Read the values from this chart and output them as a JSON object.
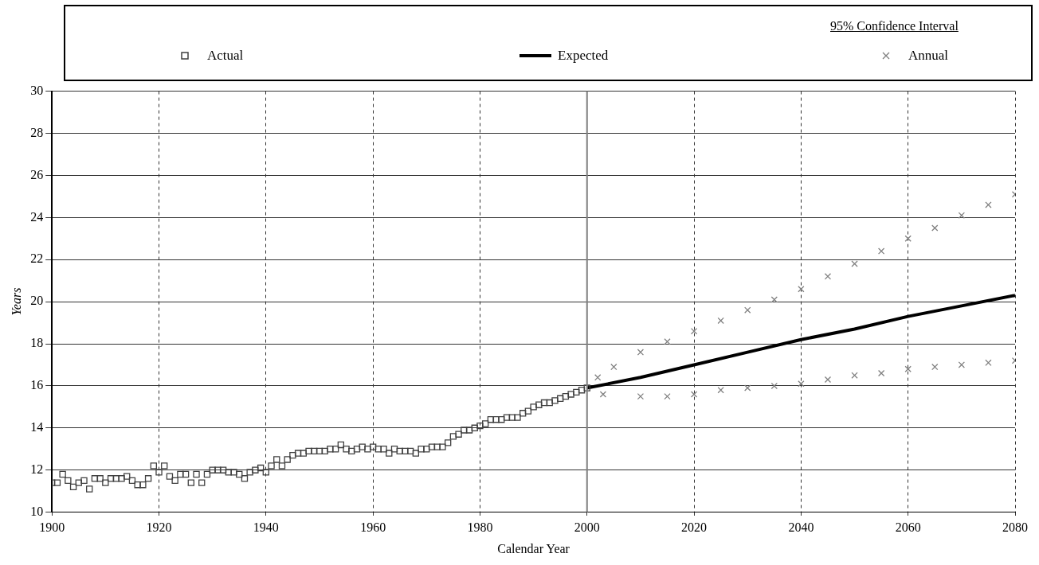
{
  "chart_data": {
    "type": "scatter",
    "xlabel": "Calendar Year",
    "ylabel": "Years",
    "legend_title": "95% Confidence Interval",
    "legend": "top",
    "grid": true,
    "xlim": [
      1900,
      2080
    ],
    "xticks": [
      1900,
      1920,
      1940,
      1960,
      1980,
      2000,
      2020,
      2040,
      2060,
      {
        "value": 2080,
        "label": "2080"
      }
    ],
    "ylim": [
      10,
      30
    ],
    "yticks": [
      10,
      12,
      14,
      16,
      18,
      20,
      22,
      24,
      26,
      28,
      30
    ],
    "ref_lines": [
      {
        "axis": "x",
        "value": 2000,
        "color": "#808080",
        "line_style": "solid"
      }
    ],
    "series": [
      {
        "name": "Actual",
        "type": "scatter",
        "marker": "square",
        "color": "#404040",
        "x": [
          1900,
          1901,
          1902,
          1903,
          1904,
          1905,
          1906,
          1907,
          1908,
          1909,
          1910,
          1911,
          1912,
          1913,
          1914,
          1915,
          1916,
          1917,
          1918,
          1919,
          1920,
          1921,
          1922,
          1923,
          1924,
          1925,
          1926,
          1927,
          1928,
          1929,
          1930,
          1931,
          1932,
          1933,
          1934,
          1935,
          1936,
          1937,
          1938,
          1939,
          1940,
          1941,
          1942,
          1943,
          1944,
          1945,
          1946,
          1947,
          1948,
          1949,
          1950,
          1951,
          1952,
          1953,
          1954,
          1955,
          1956,
          1957,
          1958,
          1959,
          1960,
          1961,
          1962,
          1963,
          1964,
          1965,
          1966,
          1967,
          1968,
          1969,
          1970,
          1971,
          1972,
          1973,
          1974,
          1975,
          1976,
          1977,
          1978,
          1979,
          1980,
          1981,
          1982,
          1983,
          1984,
          1985,
          1986,
          1987,
          1988,
          1989,
          1990,
          1991,
          1992,
          1993,
          1994,
          1995,
          1996,
          1997,
          1998,
          1999,
          2000
        ],
        "values": [
          11.4,
          11.4,
          11.8,
          11.5,
          11.2,
          11.4,
          11.5,
          11.1,
          11.6,
          11.6,
          11.4,
          11.6,
          11.6,
          11.6,
          11.7,
          11.5,
          11.3,
          11.3,
          11.6,
          12.2,
          11.9,
          12.2,
          11.7,
          11.5,
          11.8,
          11.8,
          11.4,
          11.8,
          11.4,
          11.8,
          12.0,
          12.0,
          12.0,
          11.9,
          11.9,
          11.8,
          11.6,
          11.9,
          12.0,
          12.1,
          11.9,
          12.2,
          12.5,
          12.2,
          12.5,
          12.7,
          12.8,
          12.8,
          12.9,
          12.9,
          12.9,
          12.9,
          13.0,
          13.0,
          13.2,
          13.0,
          12.9,
          13.0,
          13.1,
          13.0,
          13.1,
          13.0,
          13.0,
          12.8,
          13.0,
          12.9,
          12.9,
          12.9,
          12.8,
          13.0,
          13.0,
          13.1,
          13.1,
          13.1,
          13.3,
          13.6,
          13.7,
          13.9,
          13.9,
          14.0,
          14.1,
          14.2,
          14.4,
          14.4,
          14.4,
          14.5,
          14.5,
          14.5,
          14.7,
          14.8,
          15.0,
          15.1,
          15.2,
          15.2,
          15.3,
          15.4,
          15.5,
          15.6,
          15.7,
          15.8,
          15.9
        ]
      },
      {
        "name": "Expected",
        "type": "line",
        "marker": "none",
        "line_style": "solid",
        "color": "#000000",
        "x": [
          2000,
          2010,
          2020,
          2030,
          2040,
          2050,
          2060,
          2070,
          2080
        ],
        "values": [
          15.9,
          16.4,
          17.0,
          17.6,
          18.2,
          18.7,
          19.3,
          19.8,
          20.3
        ]
      },
      {
        "name": "Annual",
        "type": "scatter",
        "marker": "cross",
        "color": "#808080",
        "x": [
          2002,
          2005,
          2010,
          2015,
          2020,
          2025,
          2030,
          2035,
          2040,
          2045,
          2050,
          2055,
          2060,
          2065,
          2070,
          2075,
          2080
        ],
        "values": [
          16.4,
          16.9,
          17.6,
          18.1,
          18.6,
          19.1,
          19.6,
          20.1,
          20.6,
          21.2,
          21.8,
          22.4,
          23.0,
          23.5,
          24.1,
          24.6,
          25.1
        ]
      },
      {
        "type": "scatter",
        "marker": "cross",
        "color": "#808080",
        "x": [
          2003,
          2010,
          2015,
          2020,
          2025,
          2030,
          2035,
          2040,
          2045,
          2050,
          2055,
          2060,
          2065,
          2070,
          2075,
          2080
        ],
        "values": [
          15.6,
          15.5,
          15.5,
          15.6,
          15.8,
          15.9,
          16.0,
          16.1,
          16.3,
          16.5,
          16.6,
          16.8,
          16.9,
          17.0,
          17.1,
          17.2
        ]
      }
    ]
  }
}
